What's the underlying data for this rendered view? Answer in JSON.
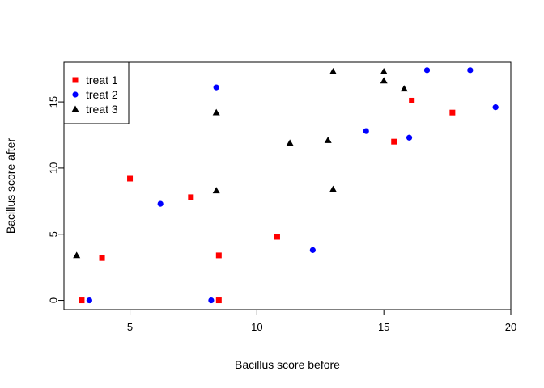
{
  "chart_data": {
    "type": "scatter",
    "title": "",
    "xlabel": "Bacillus score before",
    "ylabel": "Bacillus score after",
    "xlim": [
      2.4,
      20.0
    ],
    "ylim": [
      -0.7,
      18.0
    ],
    "xticks": [
      5,
      10,
      15,
      20
    ],
    "yticks": [
      0,
      5,
      10,
      15
    ],
    "grid": false,
    "legend_position": "top-left",
    "series": [
      {
        "name": "treat 1",
        "marker": "square",
        "color": "#ff0000",
        "points": [
          {
            "x": 3.1,
            "y": 0.0
          },
          {
            "x": 3.9,
            "y": 3.2
          },
          {
            "x": 5.0,
            "y": 9.2
          },
          {
            "x": 7.4,
            "y": 7.8
          },
          {
            "x": 8.5,
            "y": 3.4
          },
          {
            "x": 8.5,
            "y": 0.0
          },
          {
            "x": 10.8,
            "y": 4.8
          },
          {
            "x": 15.4,
            "y": 12.0
          },
          {
            "x": 16.1,
            "y": 15.1
          },
          {
            "x": 17.7,
            "y": 14.2
          }
        ]
      },
      {
        "name": "treat 2",
        "marker": "circle",
        "color": "#0000ff",
        "points": [
          {
            "x": 3.4,
            "y": 0.0
          },
          {
            "x": 6.2,
            "y": 7.3
          },
          {
            "x": 8.2,
            "y": 0.0
          },
          {
            "x": 8.4,
            "y": 16.1
          },
          {
            "x": 12.2,
            "y": 3.8
          },
          {
            "x": 14.3,
            "y": 12.8
          },
          {
            "x": 16.0,
            "y": 12.3
          },
          {
            "x": 16.7,
            "y": 17.4
          },
          {
            "x": 18.4,
            "y": 17.4
          },
          {
            "x": 19.4,
            "y": 14.6
          }
        ]
      },
      {
        "name": "treat 3",
        "marker": "triangle",
        "color": "#000000",
        "points": [
          {
            "x": 2.9,
            "y": 3.4
          },
          {
            "x": 8.4,
            "y": 8.3
          },
          {
            "x": 8.4,
            "y": 14.2
          },
          {
            "x": 11.3,
            "y": 11.9
          },
          {
            "x": 12.8,
            "y": 12.1
          },
          {
            "x": 13.0,
            "y": 8.4
          },
          {
            "x": 13.0,
            "y": 17.3
          },
          {
            "x": 15.0,
            "y": 16.6
          },
          {
            "x": 15.0,
            "y": 17.3
          },
          {
            "x": 15.8,
            "y": 16.0
          }
        ]
      }
    ]
  }
}
